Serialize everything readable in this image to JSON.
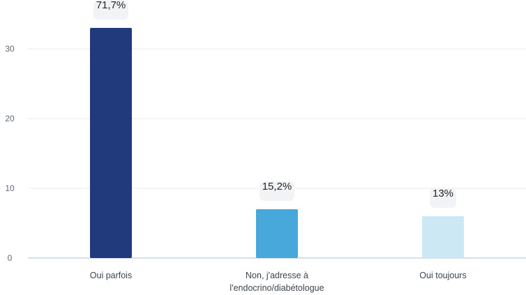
{
  "chart_data": {
    "type": "bar",
    "title": "",
    "xlabel": "",
    "ylabel": "",
    "categories": [
      [
        "Oui parfois"
      ],
      [
        "Non, j'adresse à",
        "l'endocrino/diabétologue"
      ],
      [
        "Oui toujours"
      ]
    ],
    "values": [
      33,
      7,
      6
    ],
    "data_labels": [
      "71,7%",
      "15,2%",
      "13%"
    ],
    "bar_colors": [
      "#213a7c",
      "#48a8dc",
      "#cce8f4"
    ],
    "ylim": [
      0,
      35
    ],
    "yticks": [
      0,
      10,
      20,
      30
    ],
    "grid": true,
    "legend": "none"
  },
  "colors": {
    "gridline": "#e6eaf0",
    "axis_text": "#5f6b7a",
    "label_bubble": "#f2f3f5"
  }
}
